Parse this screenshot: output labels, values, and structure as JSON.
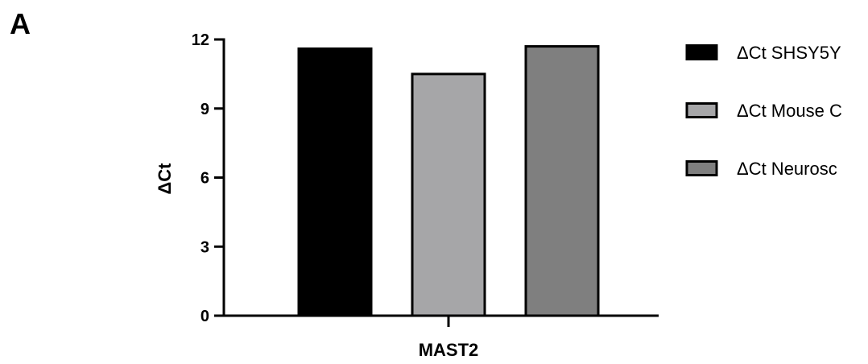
{
  "panel_label": "A",
  "chart_data": {
    "type": "bar",
    "title": "",
    "xlabel": "",
    "ylabel": "ΔCt",
    "categories": [
      "MAST2"
    ],
    "ylim": [
      0,
      12
    ],
    "yticks": [
      0,
      3,
      6,
      9,
      12
    ],
    "ytick_labels": [
      "0",
      "3",
      "6",
      "9",
      "12"
    ],
    "series": [
      {
        "name": "ΔCt SHSY5Y",
        "values": [
          11.6
        ],
        "color": "#000000"
      },
      {
        "name": "ΔCt Mouse C",
        "values": [
          10.5
        ],
        "color": "#a6a6a8"
      },
      {
        "name": "ΔCt Neurosc",
        "values": [
          11.7
        ],
        "color": "#7f7f7f"
      }
    ],
    "legend_position": "right",
    "grid": false
  }
}
